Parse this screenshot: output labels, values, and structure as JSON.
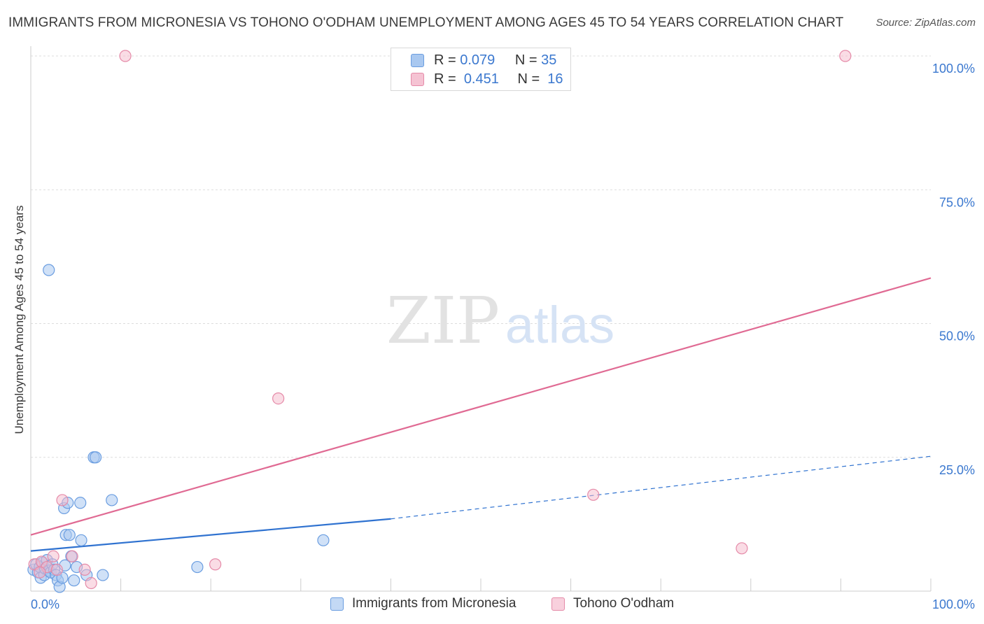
{
  "title": "IMMIGRANTS FROM MICRONESIA VS TOHONO O'ODHAM UNEMPLOYMENT AMONG AGES 45 TO 54 YEARS CORRELATION CHART",
  "source": "Source: ZipAtlas.com",
  "watermark": {
    "zip": "ZIP",
    "atlas": "atlas"
  },
  "legend_top": [
    {
      "r_label": "R =",
      "r_value": "0.079",
      "n_label": "N =",
      "n_value": "35"
    },
    {
      "r_label": "R =",
      "r_value": "0.451",
      "n_label": "N =",
      "n_value": "16"
    }
  ],
  "colors": {
    "blue_fill": "#a9c8f0",
    "blue_stroke": "#6a9de0",
    "blue_line": "#2f72d0",
    "pink_fill": "#f5b9cc",
    "pink_stroke": "#e58aa8",
    "pink_line": "#e06a93",
    "axis_text": "#3b78cf",
    "grid": "#dddddd"
  },
  "chart_data": {
    "type": "scatter",
    "title": "IMMIGRANTS FROM MICRONESIA VS TOHONO O'ODHAM UNEMPLOYMENT AMONG AGES 45 TO 54 YEARS CORRELATION CHART",
    "xlabel": "",
    "ylabel": "Unemployment Among Ages 45 to 54 years",
    "xlim": [
      0,
      100
    ],
    "ylim": [
      0,
      100
    ],
    "x_tick_labels": [
      "0.0%",
      "100.0%"
    ],
    "y_ticks": [
      25,
      50,
      75,
      100
    ],
    "y_tick_labels": [
      "25.0%",
      "50.0%",
      "75.0%",
      "100.0%"
    ],
    "series": [
      {
        "name": "Immigrants from Micronesia",
        "color": "blue",
        "R": 0.079,
        "N": 35,
        "trend": {
          "x0": 0,
          "y0": 7.5,
          "x1": 40,
          "y1": 13.5,
          "x_dashed_end": 100,
          "y_dashed_end": 25.2
        },
        "points": [
          [
            0.3,
            4.0
          ],
          [
            0.6,
            5.0
          ],
          [
            0.8,
            3.5
          ],
          [
            1.0,
            4.5
          ],
          [
            1.1,
            2.5
          ],
          [
            1.3,
            5.3
          ],
          [
            1.5,
            3.0
          ],
          [
            1.6,
            4.2
          ],
          [
            1.8,
            5.8
          ],
          [
            2.0,
            3.8
          ],
          [
            2.2,
            3.5
          ],
          [
            2.4,
            5.0
          ],
          [
            2.6,
            4.0
          ],
          [
            2.8,
            3.0
          ],
          [
            3.0,
            2.0
          ],
          [
            3.2,
            0.8
          ],
          [
            3.5,
            2.5
          ],
          [
            3.7,
            15.5
          ],
          [
            3.9,
            10.5
          ],
          [
            4.1,
            16.5
          ],
          [
            4.3,
            10.5
          ],
          [
            4.5,
            6.5
          ],
          [
            4.8,
            2.0
          ],
          [
            5.1,
            4.5
          ],
          [
            5.5,
            16.5
          ],
          [
            5.6,
            9.5
          ],
          [
            6.2,
            3.0
          ],
          [
            7.0,
            25.0
          ],
          [
            7.2,
            25.0
          ],
          [
            8.0,
            3.0
          ],
          [
            9.0,
            17.0
          ],
          [
            18.5,
            4.5
          ],
          [
            32.5,
            9.5
          ],
          [
            2.0,
            60.0
          ],
          [
            3.8,
            4.8
          ]
        ]
      },
      {
        "name": "Tohono O'odham",
        "color": "pink",
        "R": 0.451,
        "N": 16,
        "trend": {
          "x0": 0,
          "y0": 10.5,
          "x1": 100,
          "y1": 58.5
        },
        "points": [
          [
            0.4,
            5.0
          ],
          [
            1.2,
            5.5
          ],
          [
            1.8,
            4.5
          ],
          [
            2.5,
            6.5
          ],
          [
            2.9,
            4.0
          ],
          [
            3.5,
            17.0
          ],
          [
            4.6,
            6.5
          ],
          [
            6.0,
            4.0
          ],
          [
            6.7,
            1.5
          ],
          [
            10.5,
            100.0
          ],
          [
            20.5,
            5.0
          ],
          [
            27.5,
            36.0
          ],
          [
            62.5,
            18.0
          ],
          [
            79.0,
            8.0
          ],
          [
            90.5,
            100.0
          ],
          [
            1.0,
            3.5
          ]
        ]
      }
    ]
  },
  "legend_bottom": [
    "Immigrants from Micronesia",
    "Tohono O'odham"
  ]
}
